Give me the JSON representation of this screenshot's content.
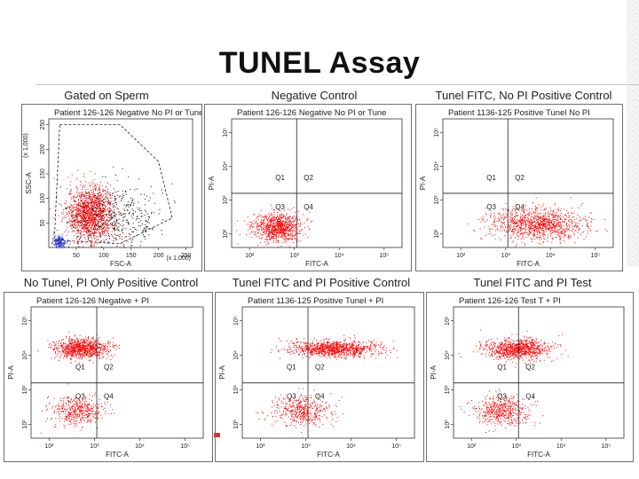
{
  "title": "TUNEL Assay",
  "colors": {
    "dots": "#ff0000",
    "gated_dots": "#1e2ad6",
    "quadrant_line": "#222222"
  },
  "panels": [
    {
      "id": "p1",
      "caption": "Gated on Sperm",
      "plot_title": "Patient 126-126 Negative No PI or Tune",
      "type": "scatter",
      "gate": true,
      "xlabel": "FSC-A",
      "ylabel": "SSC-A",
      "xticks": [
        "50",
        "100",
        "150",
        "200",
        "250"
      ],
      "yticks": [
        "50",
        "100",
        "150",
        "200",
        "250"
      ],
      "x_unit": "(x 1,000)",
      "y_unit": "(x 1,000)",
      "quadrants": null
    },
    {
      "id": "p2",
      "caption": "Negative Control",
      "plot_title": "Patient 126-126 Negative No PI or Tune",
      "type": "scatter",
      "gate": false,
      "xlabel": "FITC-A",
      "ylabel": "PI-A",
      "xticks": [
        "10^2",
        "10^3",
        "10^4",
        "10^5"
      ],
      "yticks": [
        "10^2",
        "10^3",
        "10^4",
        "10^5"
      ],
      "quadrants": [
        "Q1",
        "Q2",
        "Q3",
        "Q4"
      ]
    },
    {
      "id": "p3",
      "caption": "Tunel FITC, No PI Positive Control",
      "plot_title": "Patient 1136-125 Positive Tunel No PI",
      "type": "scatter",
      "gate": false,
      "xlabel": "FITC-A",
      "ylabel": "PI-A",
      "xticks": [
        "10^2",
        "10^3",
        "10^4",
        "10^5"
      ],
      "yticks": [
        "10^2",
        "10^3",
        "10^4",
        "10^5"
      ],
      "quadrants": [
        "Q1",
        "Q2",
        "Q3",
        "Q4"
      ]
    },
    {
      "id": "p4",
      "caption": "No Tunel, PI Only Positive Control",
      "plot_title": "Patient 126-126 Negative + PI",
      "type": "scatter",
      "gate": false,
      "xlabel": "FITC-A",
      "ylabel": "PI-A",
      "xticks": [
        "10^2",
        "10^3",
        "10^4",
        "10^5"
      ],
      "yticks": [
        "10^2",
        "10^3",
        "10^4",
        "10^5"
      ],
      "quadrants": [
        "Q1",
        "Q2",
        "Q3",
        "Q4"
      ]
    },
    {
      "id": "p5",
      "caption": "Tunel FITC and PI Positive Control",
      "plot_title": "Patient 1136-125 Positive Tunel + PI",
      "type": "scatter",
      "gate": false,
      "xlabel": "FITC-A",
      "ylabel": "PI-A",
      "xticks": [
        "10^2",
        "10^3",
        "10^4",
        "10^5"
      ],
      "yticks": [
        "10^2",
        "10^3",
        "10^4",
        "10^5"
      ],
      "quadrants": [
        "Q1",
        "Q2",
        "Q3",
        "Q4"
      ]
    },
    {
      "id": "p6",
      "caption": "Tunel FITC and PI Test",
      "plot_title": "Patient 126-126 Test T + PI",
      "type": "scatter",
      "gate": false,
      "xlabel": "FITC-A",
      "ylabel": "PI-A",
      "xticks": [
        "10^2",
        "10^3",
        "10^4",
        "10^5"
      ],
      "yticks": [
        "10^2",
        "10^3",
        "10^4",
        "10^5"
      ],
      "quadrants": [
        "Q1",
        "Q2",
        "Q3",
        "Q4"
      ]
    }
  ],
  "chart_data": [
    {
      "type": "scatter",
      "panel": "p1",
      "title": "Patient 126-126 Negative No PI or Tune",
      "xlabel": "FSC-A",
      "ylabel": "SSC-A",
      "xlim": [
        0,
        262
      ],
      "ylim": [
        0,
        262
      ],
      "clusters": [
        {
          "color": "#ff0000",
          "x_center": 75,
          "y_center": 70,
          "x_spread": 35,
          "y_spread": 45,
          "count": 1400
        },
        {
          "color": "#000000",
          "x_center": 120,
          "y_center": 60,
          "x_spread": 70,
          "y_spread": 60,
          "count": 500
        },
        {
          "color": "#1e2ad6",
          "x_center": 18,
          "y_center": 12,
          "x_spread": 10,
          "y_spread": 10,
          "count": 180
        }
      ]
    },
    {
      "type": "scatter",
      "panel": "p2",
      "title": "Patient 126-126 Negative No PI or Tune",
      "xlabel": "FITC-A",
      "ylabel": "PI-A",
      "xlim": [
        1.6,
        5.4
      ],
      "ylim": [
        1.6,
        5.4
      ],
      "clusters": [
        {
          "color": "#ff0000",
          "x_center": 2.6,
          "y_center": 2.2,
          "x_spread": 0.45,
          "y_spread": 0.35,
          "count": 900
        }
      ]
    },
    {
      "type": "scatter",
      "panel": "p3",
      "title": "Patient 1136-125 Positive Tunel No PI",
      "xlabel": "FITC-A",
      "ylabel": "PI-A",
      "xlim": [
        1.6,
        5.4
      ],
      "ylim": [
        1.6,
        5.4
      ],
      "clusters": [
        {
          "color": "#ff0000",
          "x_center": 3.7,
          "y_center": 2.3,
          "x_spread": 0.9,
          "y_spread": 0.4,
          "count": 1100
        }
      ]
    },
    {
      "type": "scatter",
      "panel": "p4",
      "title": "Patient 126-126 Negative + PI",
      "xlabel": "FITC-A",
      "ylabel": "PI-A",
      "xlim": [
        1.6,
        5.4
      ],
      "ylim": [
        1.6,
        5.4
      ],
      "clusters": [
        {
          "color": "#ff0000",
          "x_center": 2.7,
          "y_center": 4.2,
          "x_spread": 0.5,
          "y_spread": 0.25,
          "count": 900
        },
        {
          "color": "#ff0000",
          "x_center": 2.6,
          "y_center": 2.4,
          "x_spread": 0.5,
          "y_spread": 0.35,
          "count": 450
        }
      ]
    },
    {
      "type": "scatter",
      "panel": "p5",
      "title": "Patient 1136-125 Positive Tunel + PI",
      "xlabel": "FITC-A",
      "ylabel": "PI-A",
      "xlim": [
        1.6,
        5.4
      ],
      "ylim": [
        1.6,
        5.4
      ],
      "clusters": [
        {
          "color": "#ff0000",
          "x_center": 3.6,
          "y_center": 4.2,
          "x_spread": 0.8,
          "y_spread": 0.2,
          "count": 1000
        },
        {
          "color": "#ff0000",
          "x_center": 2.9,
          "y_center": 2.4,
          "x_spread": 0.55,
          "y_spread": 0.35,
          "count": 450
        }
      ]
    },
    {
      "type": "scatter",
      "panel": "p6",
      "title": "Patient 126-126 Test T + PI",
      "xlabel": "FITC-A",
      "ylabel": "PI-A",
      "xlim": [
        1.6,
        5.4
      ],
      "ylim": [
        1.6,
        5.4
      ],
      "clusters": [
        {
          "color": "#ff0000",
          "x_center": 3.0,
          "y_center": 4.2,
          "x_spread": 0.6,
          "y_spread": 0.25,
          "count": 900
        },
        {
          "color": "#ff0000",
          "x_center": 2.7,
          "y_center": 2.4,
          "x_spread": 0.5,
          "y_spread": 0.35,
          "count": 500
        }
      ]
    }
  ]
}
